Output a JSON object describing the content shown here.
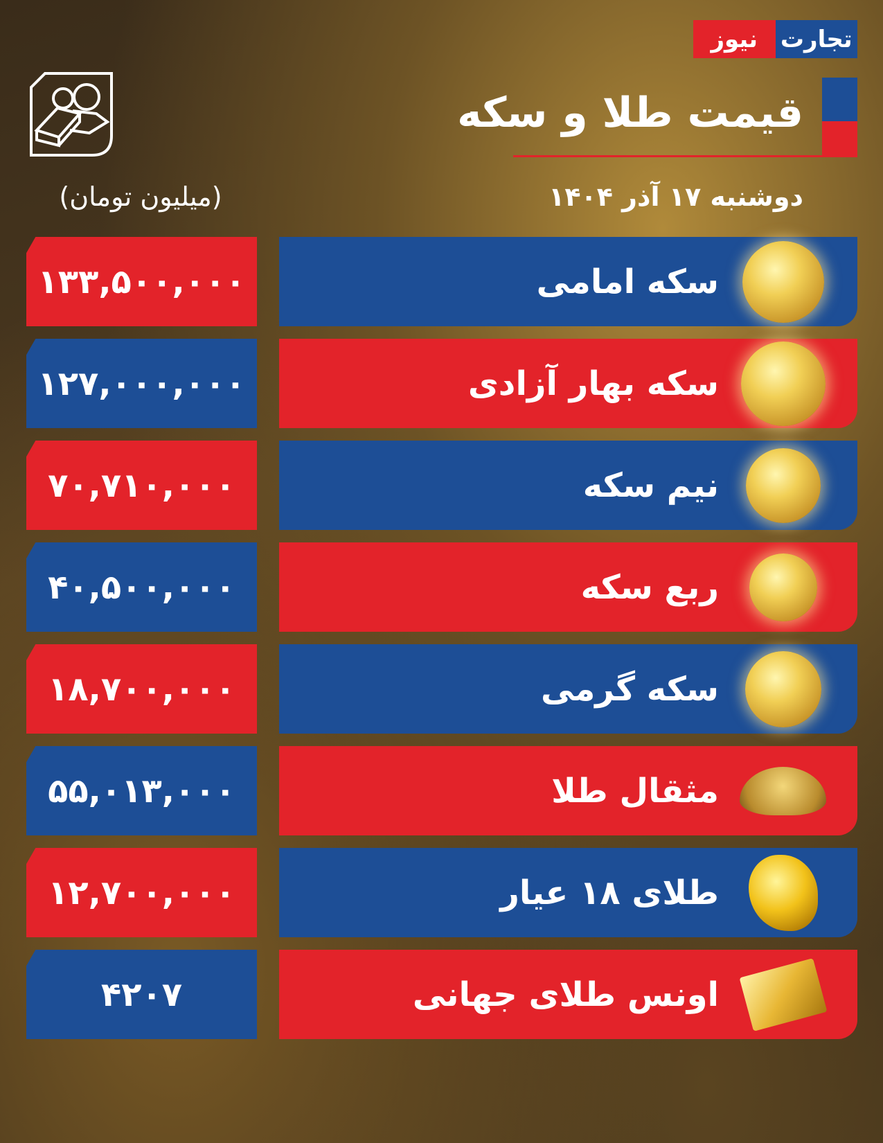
{
  "brand": {
    "part1": "تجارت",
    "part2": "نیوز",
    "blue": "#1d4e96",
    "red": "#e3232a"
  },
  "header": {
    "title": "قیمت طلا و سکه",
    "date": "دوشنبه ۱۷ آذر ۱۴۰۴",
    "units": "(میلیون تومان)",
    "icon": "gold-bars-icon"
  },
  "rows": [
    {
      "label": "سکه امامی",
      "value": "۱۳۳,۵۰۰,۰۰۰",
      "label_color": "blue",
      "value_color": "red",
      "image": "emami-coin"
    },
    {
      "label": "سکه بهار آزادی",
      "value": "۱۲۷,۰۰۰,۰۰۰",
      "label_color": "red",
      "value_color": "blue",
      "image": "bahar-azadi-coin"
    },
    {
      "label": "نیم سکه",
      "value": "۷۰,۷۱۰,۰۰۰",
      "label_color": "blue",
      "value_color": "red",
      "image": "half-coin"
    },
    {
      "label": "ربع سکه",
      "value": "۴۰,۵۰۰,۰۰۰",
      "label_color": "red",
      "value_color": "blue",
      "image": "quarter-coin"
    },
    {
      "label": "سکه گرمی",
      "value": "۱۸,۷۰۰,۰۰۰",
      "label_color": "blue",
      "value_color": "red",
      "image": "gram-coin"
    },
    {
      "label": "مثقال طلا",
      "value": "۵۵,۰۱۳,۰۰۰",
      "label_color": "red",
      "value_color": "blue",
      "image": "gold-granules"
    },
    {
      "label": "طلای ۱۸ عیار",
      "value": "۱۲,۷۰۰,۰۰۰",
      "label_color": "blue",
      "value_color": "red",
      "image": "gold-nugget"
    },
    {
      "label": "اونس طلای جهانی",
      "value": "۴۲۰۷",
      "label_color": "red",
      "value_color": "blue",
      "image": "gold-bar"
    }
  ]
}
